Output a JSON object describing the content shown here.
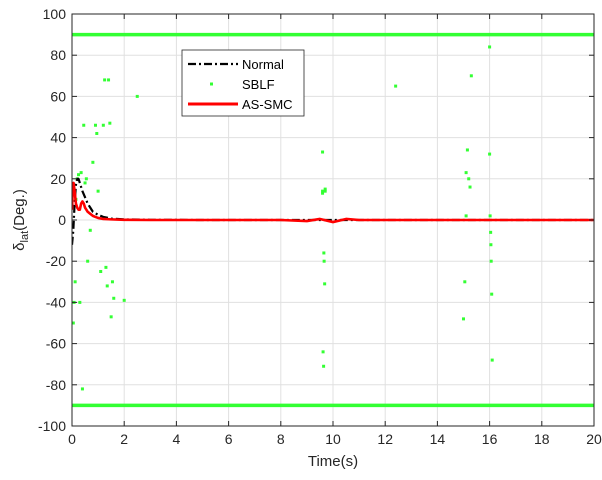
{
  "chart_data": {
    "type": "line",
    "xlabel": "Time(s)",
    "ylabel_main": "δ",
    "ylabel_sub": "lat",
    "ylabel_unit": "(Deg.)",
    "xlim": [
      0,
      20
    ],
    "ylim": [
      -100,
      100
    ],
    "xticks": [
      0,
      2,
      4,
      6,
      8,
      10,
      12,
      14,
      16,
      18,
      20
    ],
    "yticks": [
      -100,
      -80,
      -60,
      -40,
      -20,
      0,
      20,
      40,
      60,
      80,
      100
    ],
    "grid": true,
    "legend_position": "upper-center",
    "series": [
      {
        "name": "Normal",
        "color": "#000000",
        "style": "dashdot",
        "x": [
          0,
          0.05,
          0.1,
          0.15,
          0.2,
          0.25,
          0.3,
          0.35,
          0.4,
          0.5,
          0.6,
          0.7,
          0.8,
          1.0,
          1.2,
          1.5,
          2.0,
          3.0,
          5.0,
          10.0,
          15.0,
          20.0
        ],
        "y": [
          -12,
          -5,
          8,
          17,
          20,
          20,
          18,
          16,
          14,
          11,
          8,
          6,
          4,
          2.5,
          1.5,
          0.7,
          0.3,
          0.1,
          0,
          0,
          0,
          0
        ]
      },
      {
        "name": "SBLF",
        "color": "#33ff33",
        "style": "markers",
        "x": [
          0.05,
          0.08,
          0.12,
          0.15,
          0.2,
          0.25,
          0.3,
          0.35,
          0.4,
          0.45,
          0.5,
          0.55,
          0.6,
          0.7,
          0.8,
          0.9,
          0.95,
          1.0,
          1.1,
          1.2,
          1.25,
          1.3,
          1.35,
          1.4,
          1.45,
          1.5,
          1.55,
          1.6,
          2.0,
          2.5,
          9.6,
          9.6,
          9.6,
          9.62,
          9.64,
          9.65,
          9.66,
          9.68,
          9.7,
          9.7,
          12.4,
          15.0,
          15.05,
          15.1,
          15.1,
          15.15,
          15.2,
          15.25,
          15.3,
          16.0,
          16.0,
          16.02,
          16.04,
          16.05,
          16.06,
          16.08,
          16.1
        ],
        "y": [
          -50,
          -40,
          -30,
          10,
          20,
          22,
          -40,
          23,
          -82,
          46,
          18,
          20,
          -20,
          -5,
          28,
          46,
          42,
          14,
          -25,
          46,
          68,
          -23,
          -32,
          68,
          47,
          -47,
          -30,
          -38,
          -39,
          60,
          33,
          14,
          13,
          -64,
          -71,
          -16,
          -20,
          -31,
          15,
          14,
          65,
          -48,
          -30,
          23,
          2,
          34,
          20,
          16,
          70,
          32,
          84,
          2,
          -6,
          -12,
          -20,
          -36,
          -68
        ]
      },
      {
        "name": "AS-SMC",
        "color": "#ff0000",
        "style": "solid",
        "x": [
          0,
          0.03,
          0.06,
          0.1,
          0.15,
          0.2,
          0.25,
          0.3,
          0.35,
          0.4,
          0.45,
          0.5,
          0.55,
          0.6,
          0.7,
          0.8,
          0.9,
          1.0,
          1.2,
          1.5,
          2.0,
          3.0,
          5.0,
          8.0,
          9.0,
          9.5,
          10.0,
          10.5,
          11.0,
          15.0,
          20.0
        ],
        "y": [
          5,
          15,
          18,
          14,
          8,
          6,
          5,
          5,
          8,
          9,
          8,
          6,
          5,
          4,
          3,
          2,
          1.5,
          1,
          0.5,
          0.3,
          0.1,
          0,
          0,
          0,
          -0.5,
          0.5,
          -1,
          0.5,
          0,
          0,
          0
        ]
      },
      {
        "name": "SBLF upper bound",
        "color": "#33ff33",
        "style": "solid",
        "x": [
          0,
          20
        ],
        "y": [
          90,
          90
        ]
      },
      {
        "name": "SBLF lower bound",
        "color": "#33ff33",
        "style": "solid",
        "x": [
          0,
          20
        ],
        "y": [
          -90,
          -90
        ]
      }
    ],
    "legend_entries": [
      "Normal",
      "SBLF",
      "AS-SMC"
    ]
  }
}
